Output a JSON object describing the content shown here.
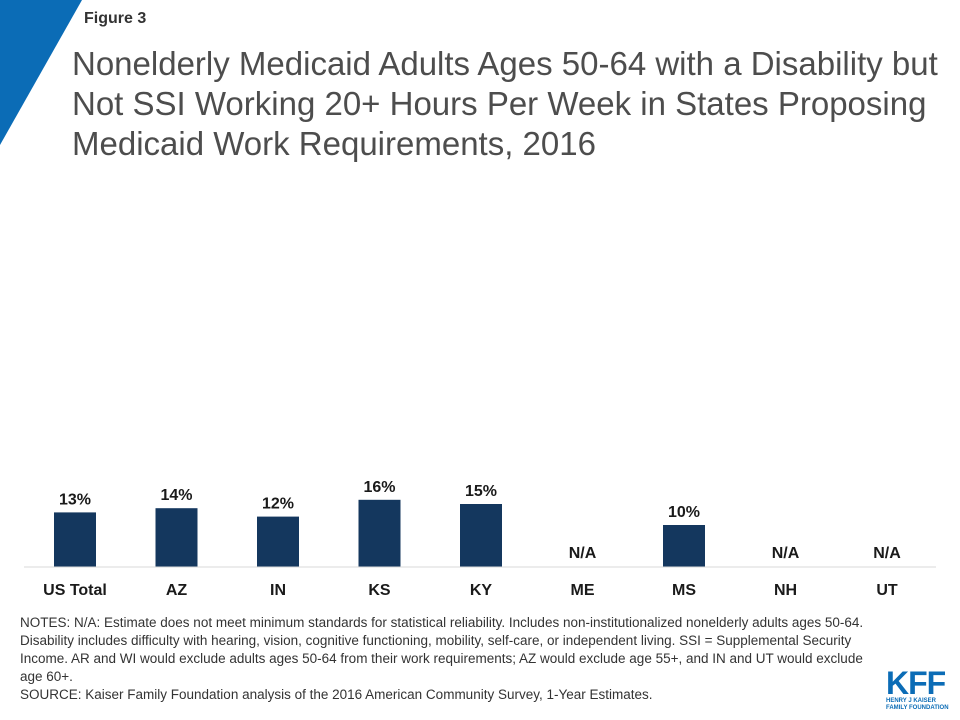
{
  "figure_label": "Figure 3",
  "title": "Nonelderly Medicaid Adults Ages 50-64 with a Disability but Not SSI Working 20+ Hours Per Week in States Proposing Medicaid Work Requirements, 2016",
  "chart_data": {
    "type": "bar",
    "categories": [
      "US Total",
      "AZ",
      "IN",
      "KS",
      "KY",
      "ME",
      "MS",
      "NH",
      "UT"
    ],
    "values": [
      13,
      14,
      12,
      16,
      15,
      null,
      10,
      null,
      null
    ],
    "data_labels": [
      "13%",
      "14%",
      "12%",
      "16%",
      "15%",
      "N/A",
      "10%",
      "N/A",
      "N/A"
    ],
    "title": "",
    "xlabel": "",
    "ylabel": "",
    "ylim": [
      0,
      16
    ],
    "grid": false,
    "bar_color": "#14375e"
  },
  "notes": [
    "NOTES: N/A: Estimate does not meet minimum standards for statistical reliability. Includes  non-institutionalized nonelderly  adults ages 50-64. Disability includes difficulty  with hearing, vision, cognitive functioning,  mobility, self-care,  or independent living.  SSI = Supplemental Security Income.   AR and WI would exclude adults ages 50-64 from their work requirements;  AZ would exclude age 55+, and IN and UT would exclude age 60+.",
    "SOURCE: Kaiser Family Foundation analysis of the 2016 American Community Survey,  1-Year Estimates."
  ],
  "logo": {
    "mark": "KFF",
    "line1": "HENRY J KAISER",
    "line2": "FAMILY FOUNDATION"
  },
  "colors": {
    "accent": "#0b6cb6",
    "bar": "#14375e"
  }
}
